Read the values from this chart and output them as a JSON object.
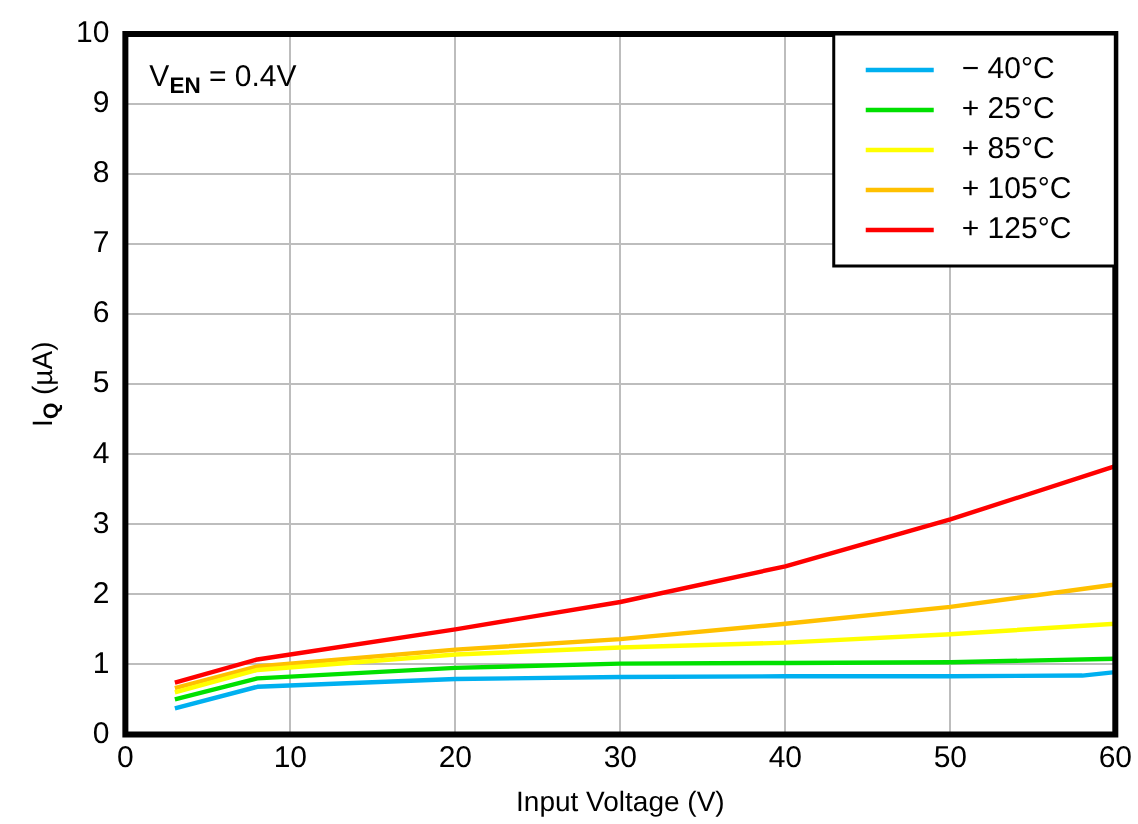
{
  "chart_data": {
    "type": "line",
    "xlabel": "Input Voltage (V)",
    "ylabel": "I$_{Q}$ (µA)",
    "xlim": [
      0,
      60
    ],
    "xticks": [
      0,
      10,
      20,
      30,
      40,
      50,
      60
    ],
    "ylim": [
      0,
      10
    ],
    "yticks": [
      0,
      1,
      2,
      3,
      4,
      5,
      6,
      7,
      8,
      9,
      10
    ],
    "grid": true,
    "legend": "top right",
    "marker": "none",
    "line_style": "solid",
    "annotations": [
      "V$_{EN}$ = 0.4V"
    ],
    "series": [
      {
        "name": "− 40°C",
        "color": "#00b0f0",
        "x": [
          3,
          8,
          20,
          30,
          40,
          50,
          58,
          60
        ],
        "values": [
          0.37,
          0.68,
          0.79,
          0.82,
          0.83,
          0.83,
          0.84,
          0.89
        ]
      },
      {
        "name": "+ 25°C",
        "color": "#00e000",
        "x": [
          3,
          8,
          20,
          30,
          40,
          50,
          60
        ],
        "values": [
          0.5,
          0.8,
          0.95,
          1.01,
          1.02,
          1.03,
          1.08
        ]
      },
      {
        "name": "+ 85°C",
        "color": "#ffff00",
        "x": [
          3,
          8,
          20,
          30,
          40,
          50,
          60
        ],
        "values": [
          0.6,
          0.92,
          1.14,
          1.24,
          1.31,
          1.43,
          1.58
        ]
      },
      {
        "name": "+ 105°C",
        "color": "#ffc000",
        "x": [
          3,
          8,
          20,
          30,
          40,
          50,
          60
        ],
        "values": [
          0.66,
          0.97,
          1.21,
          1.36,
          1.58,
          1.82,
          2.14
        ]
      },
      {
        "name": "+ 125°C",
        "color": "#ff0000",
        "x": [
          3,
          8,
          20,
          30,
          40,
          50,
          60
        ],
        "values": [
          0.74,
          1.07,
          1.5,
          1.89,
          2.4,
          3.07,
          3.83
        ]
      }
    ]
  }
}
